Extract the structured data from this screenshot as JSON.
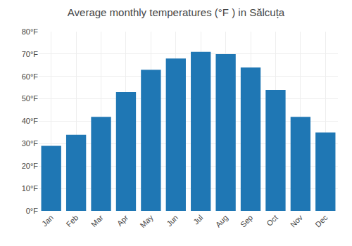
{
  "chart_data": {
    "type": "bar",
    "title": "Average monthly temperatures (°F ) in Sălcuța",
    "categories": [
      "Jan",
      "Feb",
      "Mar",
      "Apr",
      "May",
      "Jun",
      "Jul",
      "Aug",
      "Sep",
      "Oct",
      "Nov",
      "Dec"
    ],
    "values": [
      29,
      34,
      42,
      53,
      63,
      68,
      71,
      70,
      64,
      54,
      42,
      35
    ],
    "ylim": [
      0,
      80
    ],
    "yticks": [
      {
        "value": 0,
        "label": "0°F"
      },
      {
        "value": 10,
        "label": "10°F"
      },
      {
        "value": 20,
        "label": "20°F"
      },
      {
        "value": 30,
        "label": "30°F"
      },
      {
        "value": 40,
        "label": "40°F"
      },
      {
        "value": 50,
        "label": "50°F"
      },
      {
        "value": 60,
        "label": "60°F"
      },
      {
        "value": 70,
        "label": "70°F"
      },
      {
        "value": 80,
        "label": "80°F"
      }
    ],
    "grid": true
  }
}
